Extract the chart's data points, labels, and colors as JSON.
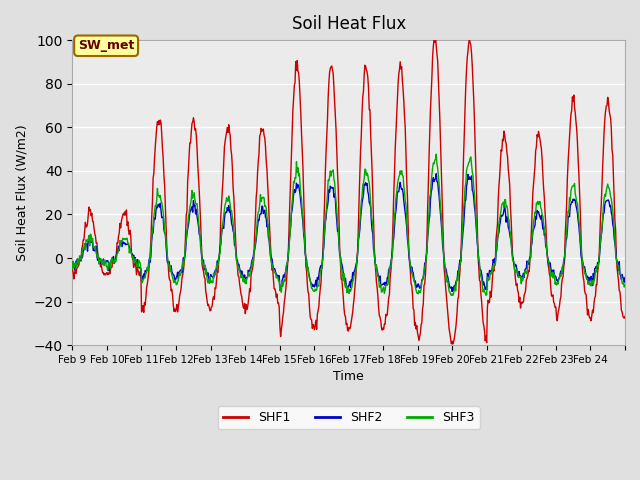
{
  "title": "Soil Heat Flux",
  "xlabel": "Time",
  "ylabel": "Soil Heat Flux (W/m2)",
  "ylim": [
    -40,
    100
  ],
  "yticks": [
    -40,
    -20,
    0,
    20,
    40,
    60,
    80,
    100
  ],
  "x_tick_positions": [
    0,
    1,
    2,
    3,
    4,
    5,
    6,
    7,
    8,
    9,
    10,
    11,
    12,
    13,
    14,
    15,
    16
  ],
  "x_labels": [
    "Feb 9",
    "Feb 10",
    "Feb 11",
    "Feb 12",
    "Feb 13",
    "Feb 14",
    "Feb 15",
    "Feb 16",
    "Feb 17",
    "Feb 18",
    "Feb 19",
    "Feb 20",
    "Feb 21",
    "Feb 22",
    "Feb 23",
    "Feb 24",
    ""
  ],
  "shf1_color": "#cc0000",
  "shf2_color": "#0000cc",
  "shf3_color": "#00aa00",
  "background_color": "#e0e0e0",
  "plot_bg_color": "#ebebeb",
  "grid_color": "#ffffff",
  "annotation_text": "SW_met",
  "annotation_bg": "#ffff99",
  "annotation_border": "#996600",
  "legend_labels": [
    "SHF1",
    "SHF2",
    "SHF3"
  ],
  "n_points": 768,
  "days": 16,
  "amp_envelope": [
    0.5,
    0.5,
    1.6,
    1.6,
    1.5,
    1.5,
    2.2,
    2.2,
    2.2,
    2.2,
    2.5,
    2.5,
    1.4,
    1.4,
    1.8,
    1.8
  ]
}
